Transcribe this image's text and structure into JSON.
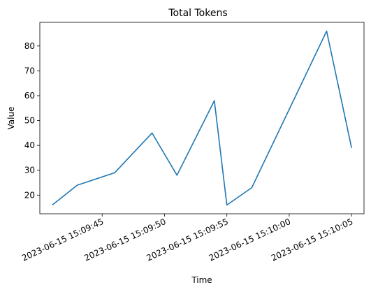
{
  "chart_data": {
    "type": "line",
    "title": "Total Tokens",
    "xlabel": "Time",
    "ylabel": "Value",
    "x": [
      "2023-06-15 15:09:41",
      "2023-06-15 15:09:43",
      "2023-06-15 15:09:46",
      "2023-06-15 15:09:49",
      "2023-06-15 15:09:51",
      "2023-06-15 15:09:54",
      "2023-06-15 15:09:55",
      "2023-06-15 15:09:57",
      "2023-06-15 15:10:03",
      "2023-06-15 15:10:05"
    ],
    "series": [
      {
        "values": [
          16,
          24,
          29,
          45,
          28,
          58,
          16,
          23,
          86,
          39
        ],
        "color": "#1f77b4"
      }
    ],
    "xlim": [
      "2023-06-15 15:09:40",
      "2023-06-15 15:10:06"
    ],
    "ylim": [
      12.5,
      89.5
    ],
    "x_ticks": [
      "2023-06-15 15:09:45",
      "2023-06-15 15:09:50",
      "2023-06-15 15:09:55",
      "2023-06-15 15:10:00",
      "2023-06-15 15:10:05"
    ],
    "y_ticks": [
      20,
      30,
      40,
      50,
      60,
      70,
      80
    ],
    "x_tick_rotation": 25,
    "grid": false,
    "legend": "none"
  }
}
